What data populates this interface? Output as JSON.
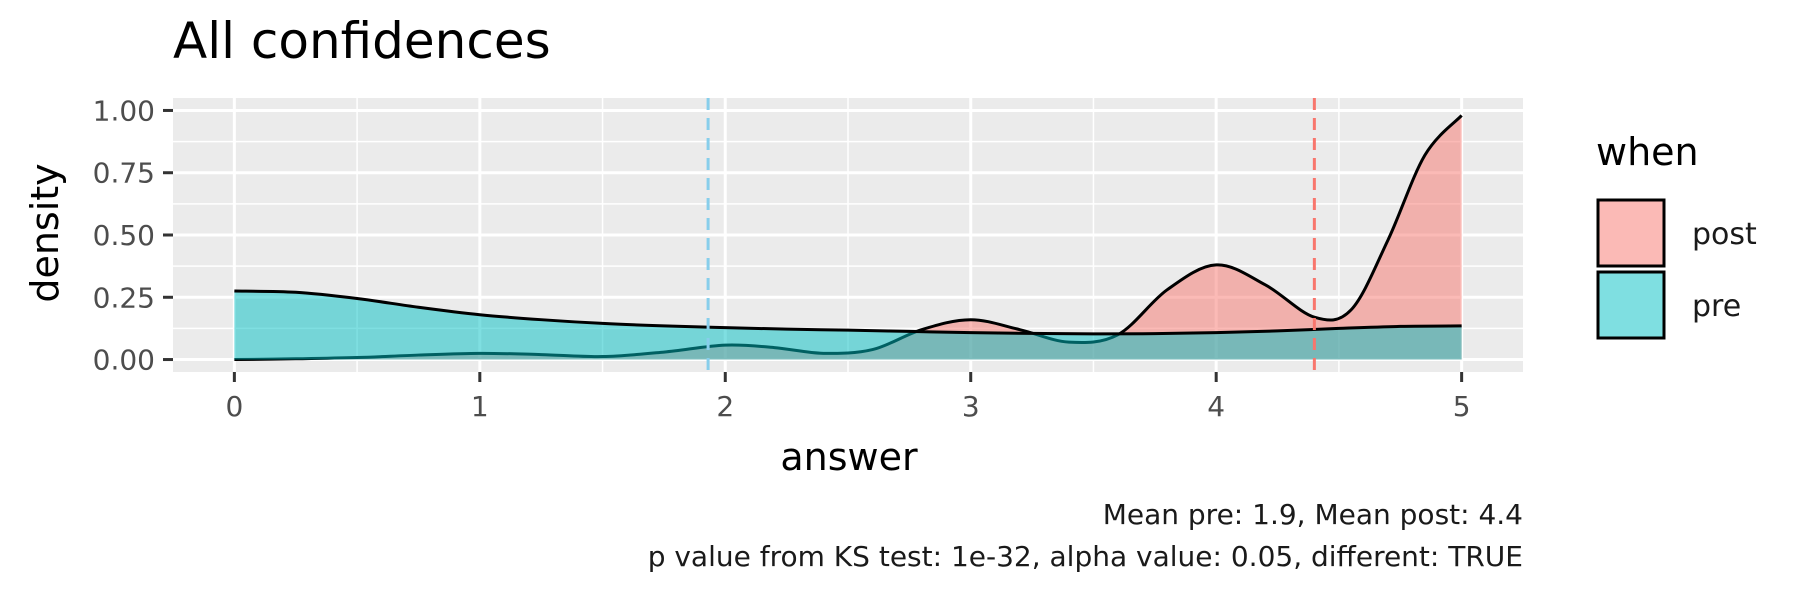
{
  "title": "All confidences",
  "caption": {
    "line1": "Mean pre: 1.9, Mean post: 4.4",
    "line2": "p value from KS test: 1e-32, alpha value: 0.05, different: TRUE"
  },
  "colors": {
    "post": "#F8766D",
    "pre": "#00BFC4",
    "post_mean_line": "#F8766D",
    "pre_mean_line": "#87CEEB",
    "panel_bg": "#EBEBEB",
    "grid": "#FFFFFF"
  },
  "chart_data": {
    "type": "area",
    "title": "All confidences",
    "xlabel": "answer",
    "ylabel": "density",
    "xlim": [
      -0.25,
      5.25
    ],
    "ylim": [
      -0.05,
      1.05
    ],
    "x_ticks": [
      0,
      1,
      2,
      3,
      4,
      5
    ],
    "x_tick_labels": [
      "0",
      "1",
      "2",
      "3",
      "4",
      "5"
    ],
    "y_ticks": [
      0,
      0.25,
      0.5,
      0.75,
      1.0
    ],
    "y_tick_labels": [
      "0.00",
      "0.25",
      "0.50",
      "0.75",
      "1.00"
    ],
    "grid": true,
    "legend": {
      "title": "when",
      "position": "right"
    },
    "series": [
      {
        "name": "post",
        "x": [
          0,
          0.25,
          0.5,
          0.75,
          1.0,
          1.25,
          1.5,
          1.75,
          2.0,
          2.2,
          2.4,
          2.6,
          2.8,
          3.0,
          3.2,
          3.4,
          3.6,
          3.8,
          4.0,
          4.2,
          4.4,
          4.55,
          4.7,
          4.85,
          5.0
        ],
        "y": [
          0.0,
          0.003,
          0.008,
          0.018,
          0.025,
          0.02,
          0.012,
          0.03,
          0.058,
          0.048,
          0.025,
          0.04,
          0.12,
          0.16,
          0.12,
          0.07,
          0.1,
          0.28,
          0.38,
          0.3,
          0.17,
          0.2,
          0.48,
          0.82,
          0.98
        ]
      },
      {
        "name": "pre",
        "x": [
          0,
          0.25,
          0.5,
          0.75,
          1.0,
          1.25,
          1.5,
          1.75,
          2.0,
          2.25,
          2.5,
          2.75,
          3.0,
          3.25,
          3.5,
          3.75,
          4.0,
          4.25,
          4.5,
          4.75,
          5.0
        ],
        "y": [
          0.275,
          0.27,
          0.245,
          0.21,
          0.18,
          0.16,
          0.145,
          0.135,
          0.128,
          0.122,
          0.118,
          0.113,
          0.108,
          0.105,
          0.103,
          0.104,
          0.108,
          0.115,
          0.125,
          0.133,
          0.135
        ]
      }
    ],
    "vlines": [
      {
        "series": "pre",
        "x": 1.93,
        "style": "dashed"
      },
      {
        "series": "post",
        "x": 4.4,
        "style": "dashed"
      }
    ]
  }
}
